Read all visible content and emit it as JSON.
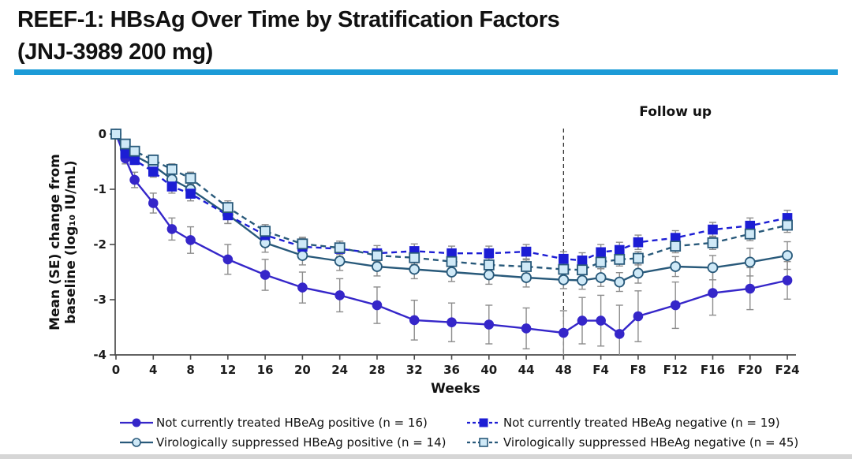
{
  "header": {
    "title_line1": "REEF-1: HBsAg Over Time by Stratification Factors",
    "title_line2": "(JNJ-3989 200 mg)",
    "accent_color": "#1c9bd7"
  },
  "chart_data": {
    "type": "line",
    "title": "",
    "xlabel": "Weeks",
    "ylabel_line1": "Mean (SE) change from",
    "ylabel_line2": "baseline (log₁₀ IU/mL)",
    "annotation": "Follow up",
    "ylim": [
      -4,
      0
    ],
    "yticks": [
      0,
      -1,
      -2,
      -3,
      -4
    ],
    "xticks": {
      "weeks": [
        0,
        4,
        8,
        12,
        16,
        20,
        24,
        28,
        32,
        36,
        40,
        44,
        48,
        52,
        56,
        60,
        64,
        68,
        72
      ],
      "labels": [
        "0",
        "4",
        "8",
        "12",
        "16",
        "20",
        "24",
        "28",
        "32",
        "36",
        "40",
        "44",
        "48",
        "F4",
        "F8",
        "F12",
        "F16",
        "F20",
        "F24"
      ]
    },
    "x_weeks": [
      0,
      1,
      2,
      4,
      6,
      8,
      12,
      16,
      20,
      24,
      28,
      32,
      36,
      40,
      44,
      48,
      50,
      52,
      54,
      56,
      60,
      64,
      68,
      72
    ],
    "follow_up_start_week": 48,
    "grid": false,
    "legend_position": "bottom",
    "error_bar_color": "#8c8c8c",
    "axis_color": "#4b4b4b",
    "draw_order": [
      0,
      2,
      1,
      3
    ],
    "series": [
      {
        "name": "Not currently treated HBeAg positive (n = 16)",
        "marker": "circle-filled",
        "line": "solid",
        "color": "#3526c9",
        "values": [
          0,
          -0.44,
          -0.83,
          -1.25,
          -1.72,
          -1.92,
          -2.27,
          -2.55,
          -2.78,
          -2.92,
          -3.1,
          -3.37,
          -3.41,
          -3.45,
          -3.52,
          -3.6,
          -3.38,
          -3.38,
          -3.62,
          -3.3,
          -3.1,
          -2.88,
          -2.8,
          -2.65
        ],
        "se": [
          0.04,
          0.1,
          0.14,
          0.18,
          0.2,
          0.24,
          0.27,
          0.28,
          0.28,
          0.3,
          0.33,
          0.36,
          0.35,
          0.35,
          0.37,
          0.4,
          0.42,
          0.46,
          0.52,
          0.46,
          0.42,
          0.4,
          0.38,
          0.34
        ]
      },
      {
        "name": "Not currently treated HBeAg negative (n = 19)",
        "marker": "square-filled",
        "line": "dashed",
        "color": "#1c1dd4",
        "values": [
          0,
          -0.35,
          -0.47,
          -0.68,
          -0.95,
          -1.08,
          -1.47,
          -1.83,
          -2.04,
          -2.08,
          -2.16,
          -2.12,
          -2.16,
          -2.16,
          -2.13,
          -2.26,
          -2.29,
          -2.14,
          -2.1,
          -1.96,
          -1.88,
          -1.73,
          -1.66,
          -1.52
        ],
        "se": [
          0.03,
          0.07,
          0.08,
          0.1,
          0.12,
          0.13,
          0.15,
          0.15,
          0.15,
          0.14,
          0.14,
          0.13,
          0.13,
          0.13,
          0.13,
          0.13,
          0.14,
          0.14,
          0.14,
          0.13,
          0.13,
          0.13,
          0.14,
          0.14
        ]
      },
      {
        "name": "Virologically suppressed HBeAg positive (n = 14)",
        "marker": "circle-open",
        "line": "solid",
        "color": "#28597a",
        "marker_fill": "#cfe9f7",
        "values": [
          0,
          -0.27,
          -0.39,
          -0.57,
          -0.82,
          -1.0,
          -1.46,
          -1.97,
          -2.2,
          -2.3,
          -2.4,
          -2.45,
          -2.5,
          -2.55,
          -2.6,
          -2.64,
          -2.65,
          -2.6,
          -2.68,
          -2.52,
          -2.4,
          -2.42,
          -2.32,
          -2.2
        ],
        "se": [
          0.03,
          0.08,
          0.1,
          0.12,
          0.14,
          0.15,
          0.16,
          0.17,
          0.17,
          0.17,
          0.17,
          0.17,
          0.17,
          0.17,
          0.17,
          0.16,
          0.16,
          0.16,
          0.17,
          0.18,
          0.18,
          0.22,
          0.25,
          0.25
        ]
      },
      {
        "name": "Virologically suppressed HBeAg negative (n = 45)",
        "marker": "square-open",
        "line": "dashed",
        "color": "#28597a",
        "marker_fill": "#cfe9f7",
        "values": [
          0,
          -0.18,
          -0.31,
          -0.47,
          -0.64,
          -0.8,
          -1.33,
          -1.76,
          -1.99,
          -2.06,
          -2.2,
          -2.24,
          -2.31,
          -2.37,
          -2.4,
          -2.45,
          -2.46,
          -2.32,
          -2.27,
          -2.25,
          -2.03,
          -1.97,
          -1.81,
          -1.65
        ],
        "se": [
          0.02,
          0.06,
          0.07,
          0.09,
          0.1,
          0.11,
          0.12,
          0.12,
          0.12,
          0.12,
          0.12,
          0.12,
          0.12,
          0.12,
          0.12,
          0.12,
          0.12,
          0.12,
          0.12,
          0.12,
          0.12,
          0.12,
          0.12,
          0.13
        ]
      }
    ]
  }
}
